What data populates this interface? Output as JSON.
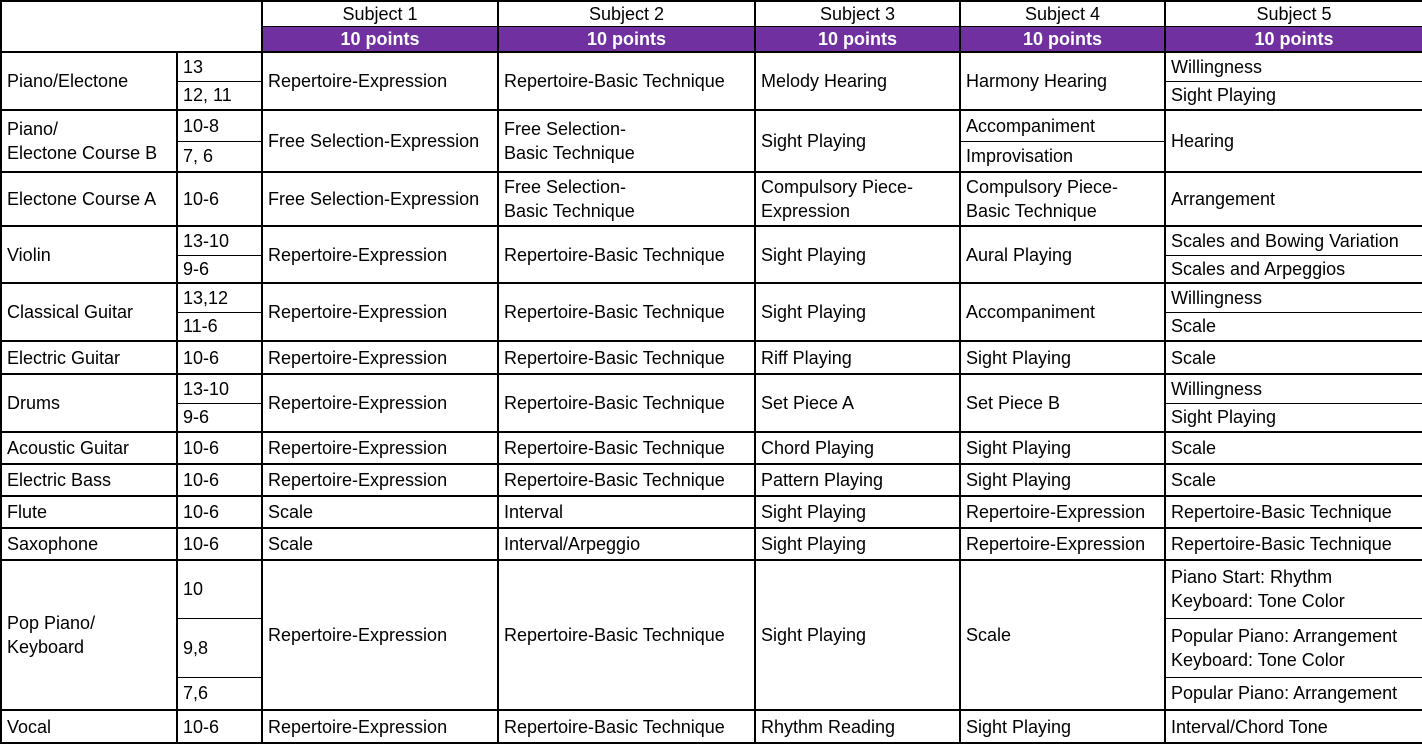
{
  "header": {
    "subjects": [
      "Subject 1",
      "Subject 2",
      "Subject 3",
      "Subject 4",
      "Subject 5"
    ],
    "points": [
      "10 points",
      "10 points",
      "10 points",
      "10 points",
      "10 points"
    ],
    "accent_color": "#7030a0"
  },
  "rows": [
    {
      "instrument": "Piano/Electone",
      "grades": [
        "13",
        "12, 11"
      ],
      "subjects": [
        "Repertoire-Expression",
        "Repertoire-Basic Technique",
        "Melody Hearing",
        "Harmony Hearing",
        [
          "Willingness",
          "Sight Playing"
        ]
      ]
    },
    {
      "instrument": "Piano/\nElectone Course B",
      "grades": [
        "10-8",
        "7, 6"
      ],
      "subjects": [
        "Free Selection-Expression",
        "Free Selection-\nBasic Technique",
        "Sight Playing",
        [
          "Accompaniment",
          "Improvisation"
        ],
        "Hearing"
      ]
    },
    {
      "instrument": "Electone Course A",
      "grades": [
        "10-6"
      ],
      "subjects": [
        "Free Selection-Expression",
        "Free Selection-\nBasic Technique",
        "Compulsory Piece-\nExpression",
        "Compulsory Piece-\nBasic Technique",
        "Arrangement"
      ]
    },
    {
      "instrument": "Violin",
      "grades": [
        "13-10",
        "9-6"
      ],
      "subjects": [
        "Repertoire-Expression",
        "Repertoire-Basic Technique",
        "Sight Playing",
        "Aural Playing",
        [
          "Scales and Bowing Variation",
          "Scales and Arpeggios"
        ]
      ]
    },
    {
      "instrument": "Classical Guitar",
      "grades": [
        "13,12",
        "11-6"
      ],
      "subjects": [
        "Repertoire-Expression",
        "Repertoire-Basic Technique",
        "Sight Playing",
        "Accompaniment",
        [
          "Willingness",
          "Scale"
        ]
      ]
    },
    {
      "instrument": "Electric Guitar",
      "grades": [
        "10-6"
      ],
      "subjects": [
        "Repertoire-Expression",
        "Repertoire-Basic Technique",
        "Riff Playing",
        "Sight Playing",
        "Scale"
      ]
    },
    {
      "instrument": "Drums",
      "grades": [
        "13-10",
        "9-6"
      ],
      "subjects": [
        "Repertoire-Expression",
        "Repertoire-Basic Technique",
        "Set Piece A",
        "Set Piece B",
        [
          "Willingness",
          "Sight Playing"
        ]
      ]
    },
    {
      "instrument": "Acoustic Guitar",
      "grades": [
        "10-6"
      ],
      "subjects": [
        "Repertoire-Expression",
        "Repertoire-Basic Technique",
        "Chord Playing",
        "Sight Playing",
        "Scale"
      ]
    },
    {
      "instrument": "Electric Bass",
      "grades": [
        "10-6"
      ],
      "subjects": [
        "Repertoire-Expression",
        "Repertoire-Basic Technique",
        "Pattern Playing",
        "Sight Playing",
        "Scale"
      ]
    },
    {
      "instrument": "Flute",
      "grades": [
        "10-6"
      ],
      "subjects": [
        "Scale",
        "Interval",
        "Sight Playing",
        "Repertoire-Expression",
        "Repertoire-Basic Technique"
      ]
    },
    {
      "instrument": "Saxophone",
      "grades": [
        "10-6"
      ],
      "subjects": [
        "Scale",
        "Interval/Arpeggio",
        "Sight Playing",
        "Repertoire-Expression",
        "Repertoire-Basic Technique"
      ]
    },
    {
      "instrument": "Pop Piano/\nKeyboard",
      "grades": [
        "10",
        "9,8",
        "7,6"
      ],
      "subjects": [
        "Repertoire-Expression",
        "Repertoire-Basic Technique",
        "Sight Playing",
        "Scale",
        [
          "Piano Start: Rhythm\nKeyboard: Tone Color",
          "Popular Piano: Arrangement\nKeyboard: Tone Color",
          "Popular Piano: Arrangement"
        ]
      ]
    },
    {
      "instrument": "Vocal",
      "grades": [
        "10-6"
      ],
      "subjects": [
        "Repertoire-Expression",
        "Repertoire-Basic Technique",
        "Rhythm Reading",
        "Sight Playing",
        "Interval/Chord Tone"
      ]
    }
  ]
}
